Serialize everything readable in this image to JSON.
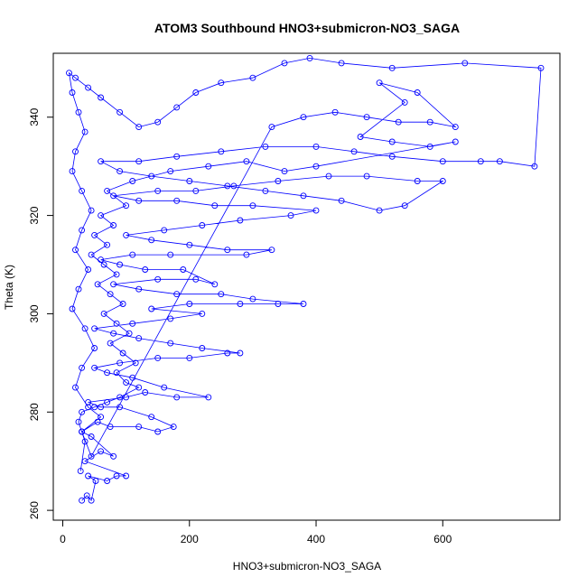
{
  "chart_data": {
    "type": "scatter",
    "title": "ATOM3 Southbound HNO3+submicron-NO3_SAGA",
    "xlabel": "HNO3+submicron-NO3_SAGA",
    "ylabel": "Theta (K)",
    "xlim": [
      -15,
      785
    ],
    "ylim": [
      258,
      353
    ],
    "xticks": [
      0,
      200,
      400,
      600
    ],
    "yticks": [
      260,
      280,
      300,
      320,
      340
    ],
    "grid": false,
    "legend": "none",
    "marker": "open-circle",
    "connected": true,
    "series": [
      {
        "color": "#0000ff",
        "points": [
          [
            30,
            262
          ],
          [
            38,
            263
          ],
          [
            45,
            262
          ],
          [
            52,
            266
          ],
          [
            40,
            267
          ],
          [
            70,
            266
          ],
          [
            85,
            267
          ],
          [
            100,
            267
          ],
          [
            35,
            270
          ],
          [
            60,
            272
          ],
          [
            80,
            271
          ],
          [
            45,
            275
          ],
          [
            30,
            276
          ],
          [
            55,
            278
          ],
          [
            75,
            277
          ],
          [
            120,
            277
          ],
          [
            150,
            276
          ],
          [
            175,
            277
          ],
          [
            140,
            279
          ],
          [
            90,
            281
          ],
          [
            60,
            281
          ],
          [
            40,
            282
          ],
          [
            100,
            283
          ],
          [
            130,
            284
          ],
          [
            180,
            283
          ],
          [
            230,
            283
          ],
          [
            160,
            285
          ],
          [
            110,
            287
          ],
          [
            70,
            288
          ],
          [
            50,
            289
          ],
          [
            90,
            290
          ],
          [
            150,
            291
          ],
          [
            200,
            291
          ],
          [
            260,
            292
          ],
          [
            280,
            292
          ],
          [
            220,
            293
          ],
          [
            170,
            294
          ],
          [
            120,
            295
          ],
          [
            80,
            296
          ],
          [
            50,
            297
          ],
          [
            110,
            298
          ],
          [
            170,
            299
          ],
          [
            220,
            300
          ],
          [
            140,
            301
          ],
          [
            200,
            302
          ],
          [
            280,
            302
          ],
          [
            340,
            302
          ],
          [
            380,
            302
          ],
          [
            300,
            303
          ],
          [
            250,
            304
          ],
          [
            180,
            304
          ],
          [
            120,
            305
          ],
          [
            80,
            306
          ],
          [
            150,
            307
          ],
          [
            210,
            307
          ],
          [
            240,
            306
          ],
          [
            190,
            309
          ],
          [
            130,
            309
          ],
          [
            90,
            310
          ],
          [
            60,
            311
          ],
          [
            110,
            312
          ],
          [
            170,
            312
          ],
          [
            290,
            312
          ],
          [
            330,
            313
          ],
          [
            260,
            313
          ],
          [
            200,
            314
          ],
          [
            140,
            315
          ],
          [
            100,
            316
          ],
          [
            160,
            317
          ],
          [
            220,
            318
          ],
          [
            280,
            319
          ],
          [
            360,
            320
          ],
          [
            400,
            321
          ],
          [
            300,
            322
          ],
          [
            240,
            322
          ],
          [
            180,
            323
          ],
          [
            120,
            323
          ],
          [
            80,
            324
          ],
          [
            150,
            325
          ],
          [
            210,
            325
          ],
          [
            270,
            326
          ],
          [
            340,
            327
          ],
          [
            420,
            328
          ],
          [
            480,
            328
          ],
          [
            560,
            327
          ],
          [
            600,
            327
          ],
          [
            540,
            322
          ],
          [
            500,
            321
          ],
          [
            440,
            323
          ],
          [
            380,
            324
          ],
          [
            320,
            325
          ],
          [
            260,
            326
          ],
          [
            200,
            327
          ],
          [
            140,
            328
          ],
          [
            90,
            329
          ],
          [
            60,
            331
          ],
          [
            120,
            331
          ],
          [
            180,
            332
          ],
          [
            250,
            333
          ],
          [
            320,
            334
          ],
          [
            400,
            334
          ],
          [
            460,
            333
          ],
          [
            520,
            332
          ],
          [
            600,
            331
          ],
          [
            660,
            331
          ],
          [
            690,
            331
          ],
          [
            745,
            330
          ],
          [
            755,
            350
          ],
          [
            635,
            351
          ],
          [
            520,
            350
          ],
          [
            440,
            351
          ],
          [
            390,
            352
          ],
          [
            350,
            351
          ],
          [
            300,
            348
          ],
          [
            250,
            347
          ],
          [
            210,
            345
          ],
          [
            180,
            342
          ],
          [
            150,
            339
          ],
          [
            120,
            338
          ],
          [
            90,
            341
          ],
          [
            60,
            344
          ],
          [
            40,
            346
          ],
          [
            20,
            348
          ],
          [
            10,
            349
          ],
          [
            15,
            345
          ],
          [
            25,
            341
          ],
          [
            35,
            337
          ],
          [
            20,
            333
          ],
          [
            15,
            329
          ],
          [
            30,
            325
          ],
          [
            45,
            321
          ],
          [
            30,
            317
          ],
          [
            20,
            313
          ],
          [
            40,
            309
          ],
          [
            25,
            305
          ],
          [
            15,
            301
          ],
          [
            35,
            297
          ],
          [
            50,
            293
          ],
          [
            30,
            289
          ],
          [
            20,
            285
          ],
          [
            40,
            281
          ],
          [
            60,
            279
          ],
          [
            30,
            276
          ],
          [
            45,
            271
          ],
          [
            330,
            338
          ],
          [
            380,
            340
          ],
          [
            430,
            341
          ],
          [
            480,
            340
          ],
          [
            530,
            339
          ],
          [
            580,
            339
          ],
          [
            620,
            338
          ],
          [
            560,
            345
          ],
          [
            500,
            347
          ],
          [
            540,
            343
          ],
          [
            470,
            336
          ],
          [
            520,
            335
          ],
          [
            580,
            334
          ],
          [
            620,
            335
          ],
          [
            400,
            330
          ],
          [
            350,
            329
          ],
          [
            290,
            331
          ],
          [
            230,
            330
          ],
          [
            170,
            329
          ],
          [
            110,
            327
          ],
          [
            70,
            325
          ],
          [
            100,
            322
          ],
          [
            60,
            320
          ],
          [
            80,
            318
          ],
          [
            50,
            316
          ],
          [
            70,
            314
          ],
          [
            45,
            312
          ],
          [
            65,
            310
          ],
          [
            85,
            308
          ],
          [
            55,
            306
          ],
          [
            75,
            304
          ],
          [
            95,
            302
          ],
          [
            65,
            300
          ],
          [
            85,
            298
          ],
          [
            105,
            296
          ],
          [
            75,
            294
          ],
          [
            95,
            292
          ],
          [
            115,
            290
          ],
          [
            85,
            288
          ],
          [
            100,
            286
          ],
          [
            120,
            285
          ],
          [
            90,
            283
          ],
          [
            70,
            282
          ],
          [
            50,
            281
          ],
          [
            30,
            280
          ],
          [
            25,
            278
          ],
          [
            35,
            274
          ],
          [
            28,
            268
          ]
        ]
      }
    ]
  }
}
